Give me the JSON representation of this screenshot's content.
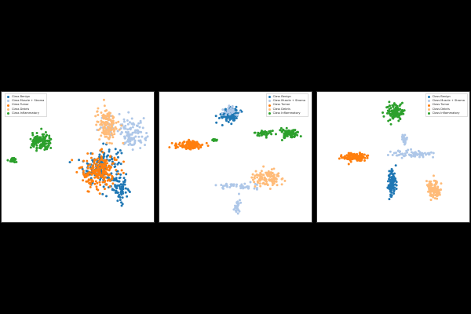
{
  "chart_data": [
    {
      "type": "scatter",
      "title": "",
      "xlabel": "",
      "ylabel": "",
      "legend_placement": "top-left",
      "grid": false,
      "series": [
        {
          "name": "Class Benign",
          "color": "#1f77b4",
          "clusters": [
            {
              "cx": 0.35,
              "cy": -0.15,
              "sx": 0.22,
              "sy": 0.28,
              "n": 150
            },
            {
              "cx": 0.62,
              "cy": -0.55,
              "sx": 0.1,
              "sy": 0.18,
              "n": 60
            }
          ]
        },
        {
          "name": "Class Muscle + Stroma",
          "color": "#aec7e8",
          "clusters": [
            {
              "cx": 0.78,
              "cy": 0.4,
              "sx": 0.16,
              "sy": 0.2,
              "n": 110
            },
            {
              "cx": 0.45,
              "cy": 0.55,
              "sx": 0.1,
              "sy": 0.12,
              "n": 30
            }
          ]
        },
        {
          "name": "Class Tumor",
          "color": "#ff7f0e",
          "clusters": [
            {
              "cx": 0.3,
              "cy": -0.25,
              "sx": 0.22,
              "sy": 0.25,
              "n": 200
            }
          ]
        },
        {
          "name": "Class Debris",
          "color": "#ffbb78",
          "clusters": [
            {
              "cx": 0.42,
              "cy": 0.55,
              "sx": 0.13,
              "sy": 0.25,
              "n": 140
            }
          ]
        },
        {
          "name": "Class Inflammatory",
          "color": "#2ca02c",
          "clusters": [
            {
              "cx": -0.52,
              "cy": 0.25,
              "sx": 0.12,
              "sy": 0.12,
              "n": 120
            },
            {
              "cx": -0.93,
              "cy": -0.05,
              "sx": 0.04,
              "sy": 0.03,
              "n": 35
            }
          ]
        }
      ]
    },
    {
      "type": "scatter",
      "title": "",
      "xlabel": "",
      "ylabel": "",
      "legend_placement": "top-right",
      "grid": false,
      "series": [
        {
          "name": "Class Benign",
          "color": "#1f77b4",
          "clusters": [
            {
              "cx": -0.08,
              "cy": 0.72,
              "sx": 0.1,
              "sy": 0.1,
              "n": 130
            }
          ]
        },
        {
          "name": "Class Muscle + Stroma",
          "color": "#aec7e8",
          "clusters": [
            {
              "cx": 0.05,
              "cy": -0.5,
              "sx": 0.25,
              "sy": 0.05,
              "n": 40
            },
            {
              "cx": 0.02,
              "cy": -0.82,
              "sx": 0.04,
              "sy": 0.12,
              "n": 25
            },
            {
              "cx": -0.06,
              "cy": 0.78,
              "sx": 0.1,
              "sy": 0.07,
              "n": 30
            }
          ]
        },
        {
          "name": "Class Tumor",
          "color": "#ff7f0e",
          "clusters": [
            {
              "cx": -0.65,
              "cy": 0.2,
              "sx": 0.16,
              "sy": 0.06,
              "n": 130
            }
          ]
        },
        {
          "name": "Class Debris",
          "color": "#ffbb78",
          "clusters": [
            {
              "cx": 0.45,
              "cy": -0.35,
              "sx": 0.18,
              "sy": 0.1,
              "n": 110
            }
          ]
        },
        {
          "name": "Class Inflammatory",
          "color": "#2ca02c",
          "clusters": [
            {
              "cx": 0.75,
              "cy": 0.4,
              "sx": 0.12,
              "sy": 0.06,
              "n": 90
            },
            {
              "cx": 0.4,
              "cy": 0.4,
              "sx": 0.1,
              "sy": 0.04,
              "n": 35
            },
            {
              "cx": -0.3,
              "cy": 0.28,
              "sx": 0.04,
              "sy": 0.02,
              "n": 10
            }
          ]
        }
      ]
    },
    {
      "type": "scatter",
      "title": "",
      "xlabel": "",
      "ylabel": "",
      "legend_placement": "top-right",
      "grid": false,
      "series": [
        {
          "name": "Class Benign",
          "color": "#1f77b4",
          "clusters": [
            {
              "cx": -0.02,
              "cy": -0.45,
              "sx": 0.05,
              "sy": 0.2,
              "n": 110
            }
          ]
        },
        {
          "name": "Class Muscle + Stroma",
          "color": "#aec7e8",
          "clusters": [
            {
              "cx": 0.28,
              "cy": 0.05,
              "sx": 0.25,
              "sy": 0.05,
              "n": 70
            },
            {
              "cx": 0.16,
              "cy": 0.28,
              "sx": 0.03,
              "sy": 0.08,
              "n": 25
            }
          ]
        },
        {
          "name": "Class Tumor",
          "color": "#ff7f0e",
          "clusters": [
            {
              "cx": -0.55,
              "cy": 0.0,
              "sx": 0.14,
              "sy": 0.06,
              "n": 120
            }
          ]
        },
        {
          "name": "Class Debris",
          "color": "#ffbb78",
          "clusters": [
            {
              "cx": 0.58,
              "cy": -0.55,
              "sx": 0.08,
              "sy": 0.12,
              "n": 110
            }
          ]
        },
        {
          "name": "Class Inflammatory",
          "color": "#2ca02c",
          "clusters": [
            {
              "cx": 0.02,
              "cy": 0.75,
              "sx": 0.1,
              "sy": 0.12,
              "n": 110
            }
          ]
        }
      ]
    }
  ]
}
